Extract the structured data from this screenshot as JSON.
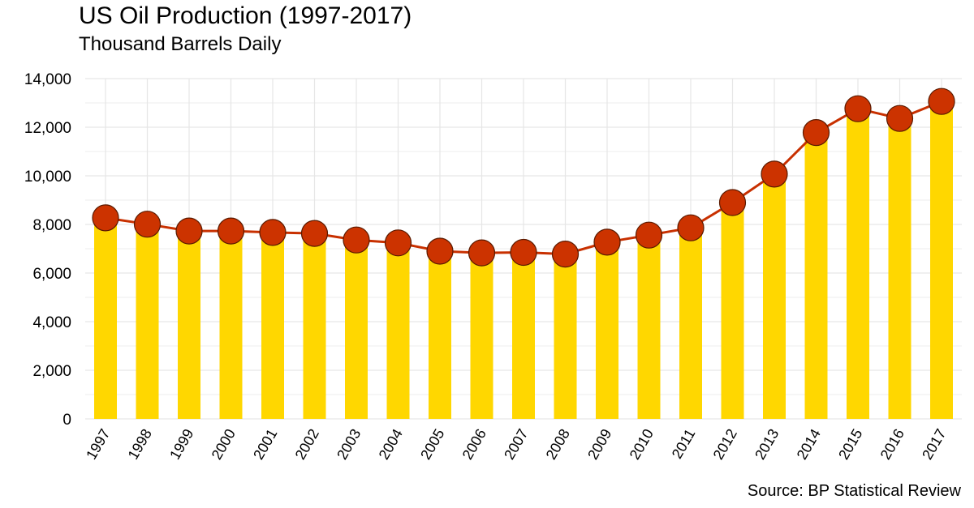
{
  "chart_data": {
    "type": "bar",
    "title": "US Oil Production (1997-2017)",
    "subtitle": "Thousand Barrels Daily",
    "source": "Source: BP Statistical Review",
    "categories": [
      "1997",
      "1998",
      "1999",
      "2000",
      "2001",
      "2002",
      "2003",
      "2004",
      "2005",
      "2006",
      "2007",
      "2008",
      "2009",
      "2010",
      "2011",
      "2012",
      "2013",
      "2014",
      "2015",
      "2016",
      "2017"
    ],
    "series": [
      {
        "values": [
          8270,
          8010,
          7730,
          7730,
          7670,
          7630,
          7360,
          7240,
          6900,
          6830,
          6850,
          6780,
          7270,
          7560,
          7860,
          8900,
          10070,
          11780,
          12760,
          12360,
          13060
        ]
      }
    ],
    "line_overlay": true,
    "ylim": [
      0,
      14000
    ],
    "yticks": [
      0,
      2000,
      4000,
      6000,
      8000,
      10000,
      12000,
      14000
    ],
    "ytick_labels": [
      "0",
      "2,000",
      "4,000",
      "6,000",
      "8,000",
      "10,000",
      "12,000",
      "14,000"
    ],
    "xlabel": "",
    "ylabel": "",
    "grid": true,
    "colors": {
      "bar": "#FFD700",
      "line": "#C83000",
      "marker": "#CC3300",
      "marker_edge": "#5a1a00",
      "grid": "#e6e6e6"
    }
  }
}
